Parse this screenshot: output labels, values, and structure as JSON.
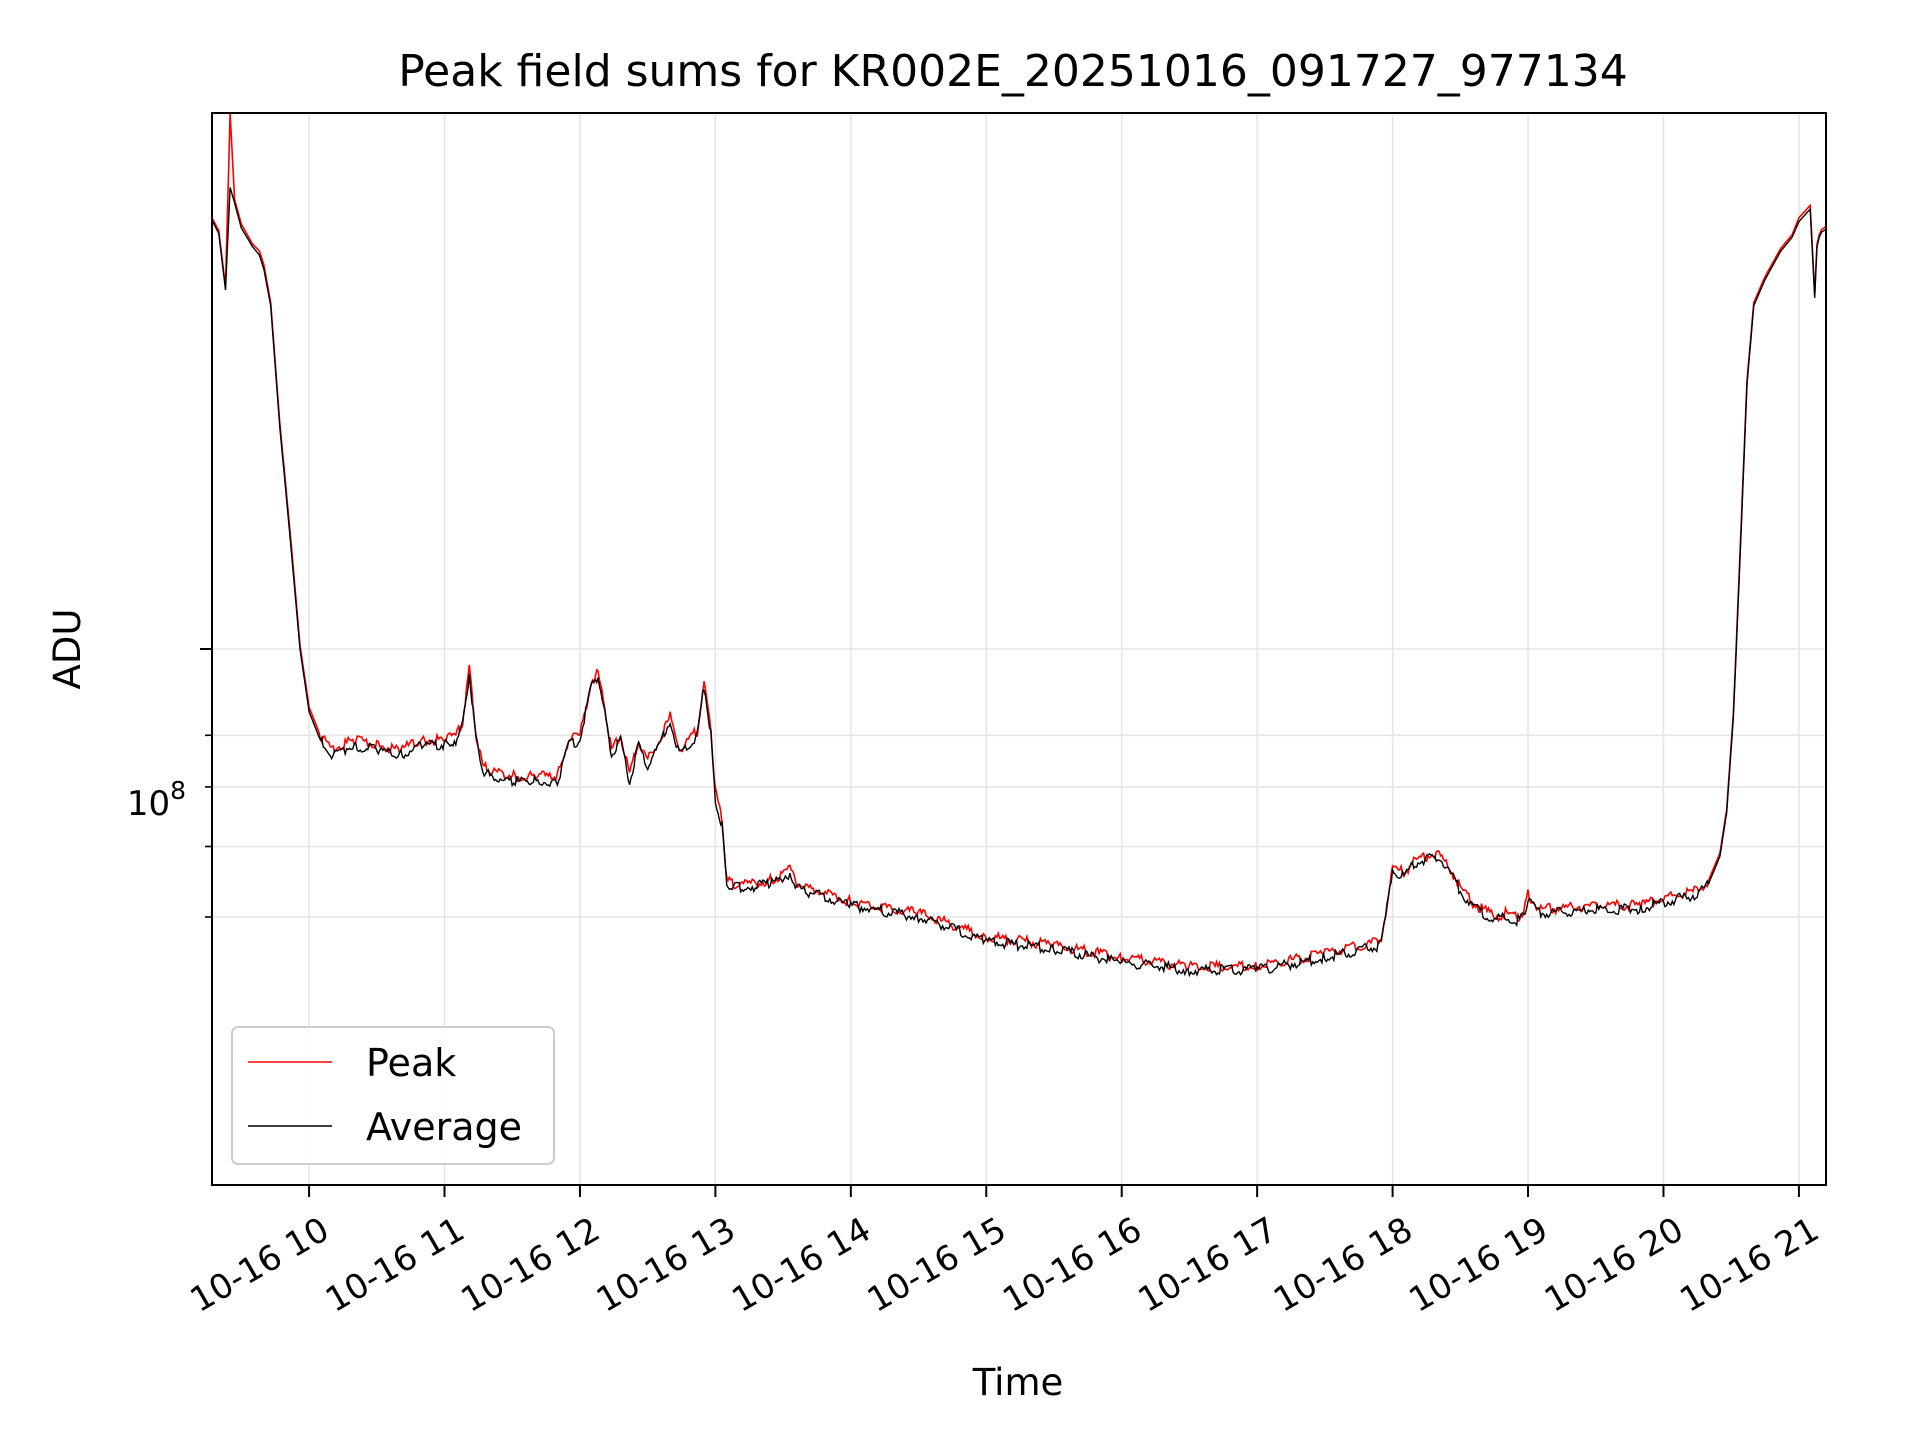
{
  "chart_data": {
    "type": "line",
    "title": "Peak field sums for KR002E_20251016_091727_977134",
    "xlabel": "Time",
    "ylabel": "ADU",
    "y_scale": "log",
    "ylim": [
      25000000,
      400000000
    ],
    "xlim": [
      "10-16 09:17",
      "10-16 21:12"
    ],
    "grid": true,
    "legend_position": "lower-left",
    "x_ticks": [
      "10-16 10",
      "10-16 11",
      "10-16 12",
      "10-16 13",
      "10-16 14",
      "10-16 15",
      "10-16 16",
      "10-16 17",
      "10-16 18",
      "10-16 19",
      "10-16 20",
      "10-16 21"
    ],
    "y_major_tick_label": {
      "base": "10",
      "exponent": "8",
      "value": 100000000
    },
    "y_minor_ticks": [
      50000000,
      60000000,
      70000000,
      80000000
    ],
    "x": [
      "10-16 09:17",
      "10-16 09:20",
      "10-16 09:23",
      "10-16 09:25",
      "10-16 09:27",
      "10-16 09:30",
      "10-16 09:35",
      "10-16 09:38",
      "10-16 09:40",
      "10-16 09:43",
      "10-16 09:47",
      "10-16 09:52",
      "10-16 09:56",
      "10-16 10:00",
      "10-16 10:05",
      "10-16 10:10",
      "10-16 10:20",
      "10-16 10:30",
      "10-16 10:40",
      "10-16 10:50",
      "10-16 11:00",
      "10-16 11:05",
      "10-16 11:08",
      "10-16 11:11",
      "10-16 11:14",
      "10-16 11:17",
      "10-16 11:20",
      "10-16 11:30",
      "10-16 11:40",
      "10-16 11:50",
      "10-16 11:55",
      "10-16 12:00",
      "10-16 12:05",
      "10-16 12:08",
      "10-16 12:11",
      "10-16 12:14",
      "10-16 12:18",
      "10-16 12:22",
      "10-16 12:26",
      "10-16 12:30",
      "10-16 12:35",
      "10-16 12:40",
      "10-16 12:44",
      "10-16 12:48",
      "10-16 12:52",
      "10-16 12:55",
      "10-16 12:58",
      "10-16 13:00",
      "10-16 13:03",
      "10-16 13:05",
      "10-16 13:08",
      "10-16 13:15",
      "10-16 13:25",
      "10-16 13:33",
      "10-16 13:36",
      "10-16 13:40",
      "10-16 14:00",
      "10-16 14:30",
      "10-16 15:00",
      "10-16 15:30",
      "10-16 16:00",
      "10-16 16:30",
      "10-16 17:00",
      "10-16 17:30",
      "10-16 17:55",
      "10-16 18:00",
      "10-16 18:05",
      "10-16 18:10",
      "10-16 18:15",
      "10-16 18:20",
      "10-16 18:25",
      "10-16 18:30",
      "10-16 18:35",
      "10-16 18:40",
      "10-16 18:45",
      "10-16 18:50",
      "10-16 18:55",
      "10-16 18:58",
      "10-16 19:00",
      "10-16 19:05",
      "10-16 19:30",
      "10-16 19:50",
      "10-16 19:55",
      "10-16 20:00",
      "10-16 20:15",
      "10-16 20:20",
      "10-16 20:25",
      "10-16 20:28",
      "10-16 20:31",
      "10-16 20:34",
      "10-16 20:37",
      "10-16 20:40",
      "10-16 20:45",
      "10-16 20:52",
      "10-16 20:57",
      "10-16 21:00",
      "10-16 21:05",
      "10-16 21:07",
      "10-16 21:08",
      "10-16 21:09",
      "10-16 21:10",
      "10-16 21:12"
    ],
    "series": [
      {
        "name": "Peak",
        "color": "#ff0000",
        "values": [
          305000000,
          295000000,
          255000000,
          400000000,
          320000000,
          300000000,
          285000000,
          280000000,
          270000000,
          245000000,
          180000000,
          132000000,
          101000000,
          86000000,
          80000000,
          77000000,
          79000000,
          78000000,
          77000000,
          79000000,
          79000000,
          80000000,
          83000000,
          95000000,
          80000000,
          74000000,
          73000000,
          72000000,
          72000000,
          72000000,
          79000000,
          80000000,
          92000000,
          94000000,
          86000000,
          77000000,
          80000000,
          72000000,
          79000000,
          75000000,
          79000000,
          84000000,
          77000000,
          79000000,
          81000000,
          92000000,
          81000000,
          69000000,
          64000000,
          55000000,
          54500000,
          54500000,
          55000000,
          56500000,
          54500000,
          54000000,
          52000000,
          50500000,
          47500000,
          46500000,
          45000000,
          44000000,
          44000000,
          45500000,
          47000000,
          57000000,
          56000000,
          58000000,
          58500000,
          59000000,
          57000000,
          54000000,
          52000000,
          51000000,
          50000000,
          50500000,
          50000000,
          50500000,
          53000000,
          51000000,
          51500000,
          51500000,
          52000000,
          52500000,
          53500000,
          55000000,
          59000000,
          66000000,
          85000000,
          130000000,
          200000000,
          245000000,
          262000000,
          282000000,
          292000000,
          305000000,
          315000000,
          250000000,
          285000000,
          292000000,
          296000000,
          298000000
        ]
      },
      {
        "name": "Average",
        "color": "#000000",
        "values": [
          303000000,
          293000000,
          253000000,
          330000000,
          317000000,
          297000000,
          283000000,
          277000000,
          267000000,
          243000000,
          178000000,
          130000000,
          100000000,
          85000000,
          79000000,
          76000000,
          78000000,
          77000000,
          76000000,
          78000000,
          78000000,
          79000000,
          82000000,
          94000000,
          79000000,
          73000000,
          72000000,
          71000000,
          71000000,
          71000000,
          78000000,
          79000000,
          91000000,
          93000000,
          85000000,
          76000000,
          79000000,
          71000000,
          78000000,
          74000000,
          78000000,
          83000000,
          76000000,
          78000000,
          80000000,
          91000000,
          80000000,
          68000000,
          63000000,
          54500000,
          54000000,
          54000000,
          54500000,
          56000000,
          54000000,
          53500000,
          51500000,
          50000000,
          47000000,
          46000000,
          44500000,
          43600000,
          43600000,
          45000000,
          46500000,
          56500000,
          55500000,
          57500000,
          58000000,
          58500000,
          56500000,
          53500000,
          51500000,
          50500000,
          49500000,
          50000000,
          49500000,
          50000000,
          52500000,
          50500000,
          51000000,
          51000000,
          51500000,
          52000000,
          53000000,
          54500000,
          58500000,
          65500000,
          84000000,
          128000000,
          198000000,
          243000000,
          260000000,
          280000000,
          290000000,
          302000000,
          312000000,
          248000000,
          283000000,
          290000000,
          294000000,
          296000000
        ]
      }
    ]
  }
}
